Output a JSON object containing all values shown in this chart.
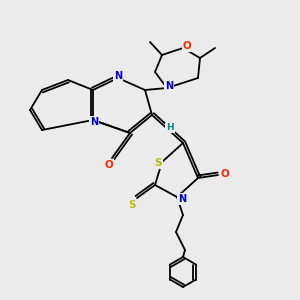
{
  "bg_color": "#ebebeb",
  "atom_colors": {
    "C": "#000000",
    "N": "#0000cc",
    "O": "#ff2200",
    "S": "#bbbb00",
    "H": "#008888"
  },
  "bond_color": "#000000",
  "lw": 1.3
}
